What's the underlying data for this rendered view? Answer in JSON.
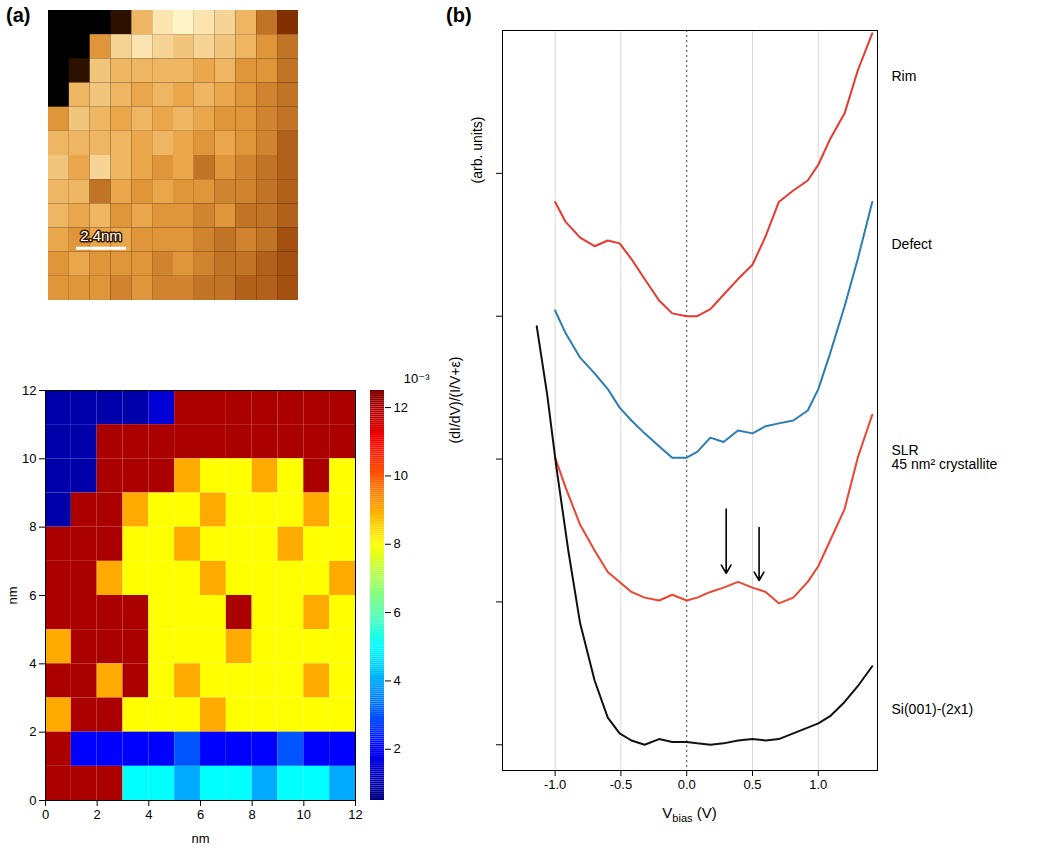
{
  "chart_data": [
    {
      "type": "heatmap",
      "panel": "(a)",
      "tick_labels": false,
      "x": [
        0.5,
        1.5,
        2.5,
        3.5,
        4.5,
        5.5,
        6.5,
        7.5,
        8.5,
        9.5,
        10.5,
        11.5
      ],
      "y": [
        11.5,
        10.5,
        9.5,
        8.5,
        7.5,
        6.5,
        5.5,
        4.5,
        3.5,
        2.5,
        1.5,
        0.5
      ],
      "cells": [
        [
          0,
          0,
          0,
          0.1,
          0.7,
          0.85,
          0.9,
          0.85,
          0.8,
          0.7,
          0.5,
          0.3
        ],
        [
          0,
          0,
          0.6,
          0.8,
          0.85,
          0.8,
          0.75,
          0.8,
          0.75,
          0.7,
          0.6,
          0.5
        ],
        [
          0,
          0.1,
          0.75,
          0.7,
          0.7,
          0.7,
          0.7,
          0.65,
          0.7,
          0.6,
          0.6,
          0.5
        ],
        [
          0,
          0.7,
          0.75,
          0.7,
          0.65,
          0.7,
          0.65,
          0.7,
          0.65,
          0.6,
          0.55,
          0.5
        ],
        [
          0.6,
          0.75,
          0.7,
          0.65,
          0.7,
          0.65,
          0.7,
          0.65,
          0.6,
          0.6,
          0.55,
          0.5
        ],
        [
          0.7,
          0.7,
          0.7,
          0.7,
          0.65,
          0.7,
          0.65,
          0.6,
          0.65,
          0.6,
          0.55,
          0.45
        ],
        [
          0.75,
          0.65,
          0.8,
          0.7,
          0.65,
          0.6,
          0.65,
          0.5,
          0.6,
          0.55,
          0.5,
          0.45
        ],
        [
          0.7,
          0.7,
          0.5,
          0.65,
          0.6,
          0.65,
          0.6,
          0.6,
          0.55,
          0.55,
          0.5,
          0.45
        ],
        [
          0.7,
          0.65,
          0.7,
          0.6,
          0.65,
          0.6,
          0.6,
          0.55,
          0.6,
          0.5,
          0.5,
          0.45
        ],
        [
          0.65,
          0.6,
          0.65,
          0.65,
          0.6,
          0.6,
          0.6,
          0.55,
          0.5,
          0.55,
          0.5,
          0.4
        ],
        [
          0.6,
          0.65,
          0.6,
          0.6,
          0.6,
          0.55,
          0.6,
          0.55,
          0.5,
          0.5,
          0.45,
          0.4
        ],
        [
          0.6,
          0.6,
          0.6,
          0.55,
          0.6,
          0.55,
          0.55,
          0.5,
          0.5,
          0.45,
          0.45,
          0.4
        ]
      ],
      "scale_bar": {
        "length": 2.4,
        "label": "2.4nm"
      }
    },
    {
      "type": "heatmap",
      "x_label": "nm",
      "y_label": "nm",
      "xlim": [
        0,
        12
      ],
      "ylim": [
        0,
        12
      ],
      "xticks": [
        0,
        2,
        4,
        6,
        8,
        10,
        12
      ],
      "yticks": [
        0,
        2,
        4,
        6,
        8,
        10,
        12
      ],
      "x": [
        0.5,
        1.5,
        2.5,
        3.5,
        4.5,
        5.5,
        6.5,
        7.5,
        8.5,
        9.5,
        10.5,
        11.5
      ],
      "y": [
        11.5,
        10.5,
        9.5,
        8.5,
        7.5,
        6.5,
        5.5,
        4.5,
        3.5,
        2.5,
        1.5,
        0.5
      ],
      "cells": [
        [
          1,
          1,
          1,
          1,
          1.5,
          12,
          12,
          12,
          12,
          12,
          12,
          12
        ],
        [
          1,
          1,
          12,
          12,
          12,
          12,
          12,
          12,
          12,
          12,
          12,
          12
        ],
        [
          1,
          1,
          12,
          12,
          12,
          9,
          8,
          8,
          9,
          8,
          12,
          8
        ],
        [
          1,
          12,
          12,
          9,
          8,
          8,
          9,
          8,
          8,
          8,
          9,
          8
        ],
        [
          12,
          12,
          12,
          8,
          8,
          9,
          8,
          8,
          8,
          9,
          8,
          8
        ],
        [
          12,
          12,
          9,
          8,
          8,
          8,
          9,
          8,
          8,
          8,
          8,
          9
        ],
        [
          12,
          12,
          12,
          12,
          8,
          8,
          8,
          12,
          8,
          8,
          9,
          8
        ],
        [
          9,
          12,
          12,
          12,
          8,
          8,
          8,
          9,
          8,
          8,
          8,
          8
        ],
        [
          12,
          12,
          9,
          12,
          8,
          9,
          8,
          8,
          8,
          8,
          9,
          8
        ],
        [
          9,
          12,
          12,
          8,
          8,
          8,
          9,
          8,
          8,
          8,
          8,
          8
        ],
        [
          12,
          2,
          2,
          2,
          2,
          3,
          2,
          2,
          2,
          3,
          2,
          2
        ],
        [
          12,
          12,
          12,
          5,
          5,
          4,
          5,
          5,
          4,
          5,
          5,
          4
        ]
      ],
      "colorbar": {
        "range": [
          0.5,
          12.5
        ],
        "ticks": [
          2,
          4,
          6,
          8,
          10,
          12
        ],
        "label": "10⁻³"
      }
    },
    {
      "type": "line",
      "panel": "(b)",
      "x_label": {
        "base": "V",
        "subscript": "bias",
        "rest": " (V)"
      },
      "y_label": "(dI/dV)/(I/V+ε)",
      "y_units": "(arb. units)",
      "xlim": [
        -1.4,
        1.45
      ],
      "ylim": [
        -0.18,
        5.0
      ],
      "xticks": [
        {
          "value": -1,
          "label": "-1.0"
        },
        -0.5,
        {
          "value": 0,
          "label": "0.0"
        },
        0.5,
        {
          "value": 1,
          "label": "1.0"
        }
      ],
      "yticks": [
        0,
        1,
        2,
        3,
        4
      ],
      "tick_labels": "x",
      "grid": true,
      "vlines": [
        0
      ],
      "series": [
        {
          "name": "Rim",
          "color": "#e8382f",
          "x": [
            -1.0,
            -0.92,
            -0.81,
            -0.7,
            -0.6,
            -0.51,
            -0.42,
            -0.32,
            -0.21,
            -0.11,
            0,
            0.08,
            0.18,
            0.28,
            0.39,
            0.5,
            0.6,
            0.7,
            0.81,
            0.92,
            1.0,
            1.09,
            1.2,
            1.3,
            1.41
          ],
          "values": [
            3.8,
            3.66,
            3.55,
            3.49,
            3.53,
            3.51,
            3.4,
            3.26,
            3.11,
            3.02,
            3.0,
            3.0,
            3.05,
            3.15,
            3.26,
            3.36,
            3.56,
            3.8,
            3.88,
            3.95,
            4.06,
            4.24,
            4.42,
            4.72,
            4.98
          ]
        },
        {
          "name": "Defect",
          "color": "#2a7db5",
          "x": [
            -1.0,
            -0.92,
            -0.81,
            -0.7,
            -0.6,
            -0.51,
            -0.42,
            -0.32,
            -0.21,
            -0.11,
            0,
            0.08,
            0.18,
            0.28,
            0.39,
            0.5,
            0.6,
            0.7,
            0.81,
            0.92,
            1.0,
            1.09,
            1.2,
            1.3,
            1.41
          ],
          "values": [
            3.04,
            2.88,
            2.71,
            2.6,
            2.49,
            2.36,
            2.27,
            2.18,
            2.09,
            2.01,
            2.01,
            2.05,
            2.15,
            2.12,
            2.2,
            2.18,
            2.23,
            2.25,
            2.27,
            2.34,
            2.49,
            2.74,
            3.07,
            3.4,
            3.8
          ]
        },
        {
          "name": "SLR\n45 nm² crystallite",
          "color": "#ee4530",
          "x": [
            -1.0,
            -0.92,
            -0.81,
            -0.7,
            -0.6,
            -0.51,
            -0.42,
            -0.32,
            -0.21,
            -0.11,
            0,
            0.08,
            0.18,
            0.28,
            0.39,
            0.5,
            0.6,
            0.7,
            0.81,
            0.92,
            1.0,
            1.09,
            1.2,
            1.3,
            1.41
          ],
          "values": [
            2.01,
            1.8,
            1.54,
            1.36,
            1.21,
            1.14,
            1.07,
            1.03,
            1.01,
            1.05,
            1.01,
            1.03,
            1.07,
            1.1,
            1.14,
            1.1,
            1.07,
            0.99,
            1.03,
            1.14,
            1.25,
            1.43,
            1.65,
            2.01,
            2.31
          ]
        },
        {
          "name": "Si(001)-(2x1)",
          "color": "#111111",
          "x": [
            -1.14,
            -1.06,
            -0.99,
            -0.9,
            -0.81,
            -0.7,
            -0.6,
            -0.51,
            -0.42,
            -0.32,
            -0.21,
            -0.11,
            0,
            0.08,
            0.18,
            0.28,
            0.39,
            0.5,
            0.6,
            0.7,
            0.81,
            0.92,
            1.0,
            1.09,
            1.2,
            1.3,
            1.41
          ],
          "values": [
            2.93,
            2.45,
            1.94,
            1.36,
            0.85,
            0.45,
            0.19,
            0.08,
            0.03,
            0,
            0.04,
            0.02,
            0.02,
            0.01,
            0,
            0.01,
            0.03,
            0.04,
            0.03,
            0.04,
            0.08,
            0.12,
            0.15,
            0.2,
            0.3,
            0.41,
            0.55
          ]
        }
      ],
      "arrows": [
        {
          "x": 0.3,
          "from": 1.65,
          "to": 1.2
        },
        {
          "x": 0.55,
          "from": 1.52,
          "to": 1.15
        }
      ]
    }
  ]
}
